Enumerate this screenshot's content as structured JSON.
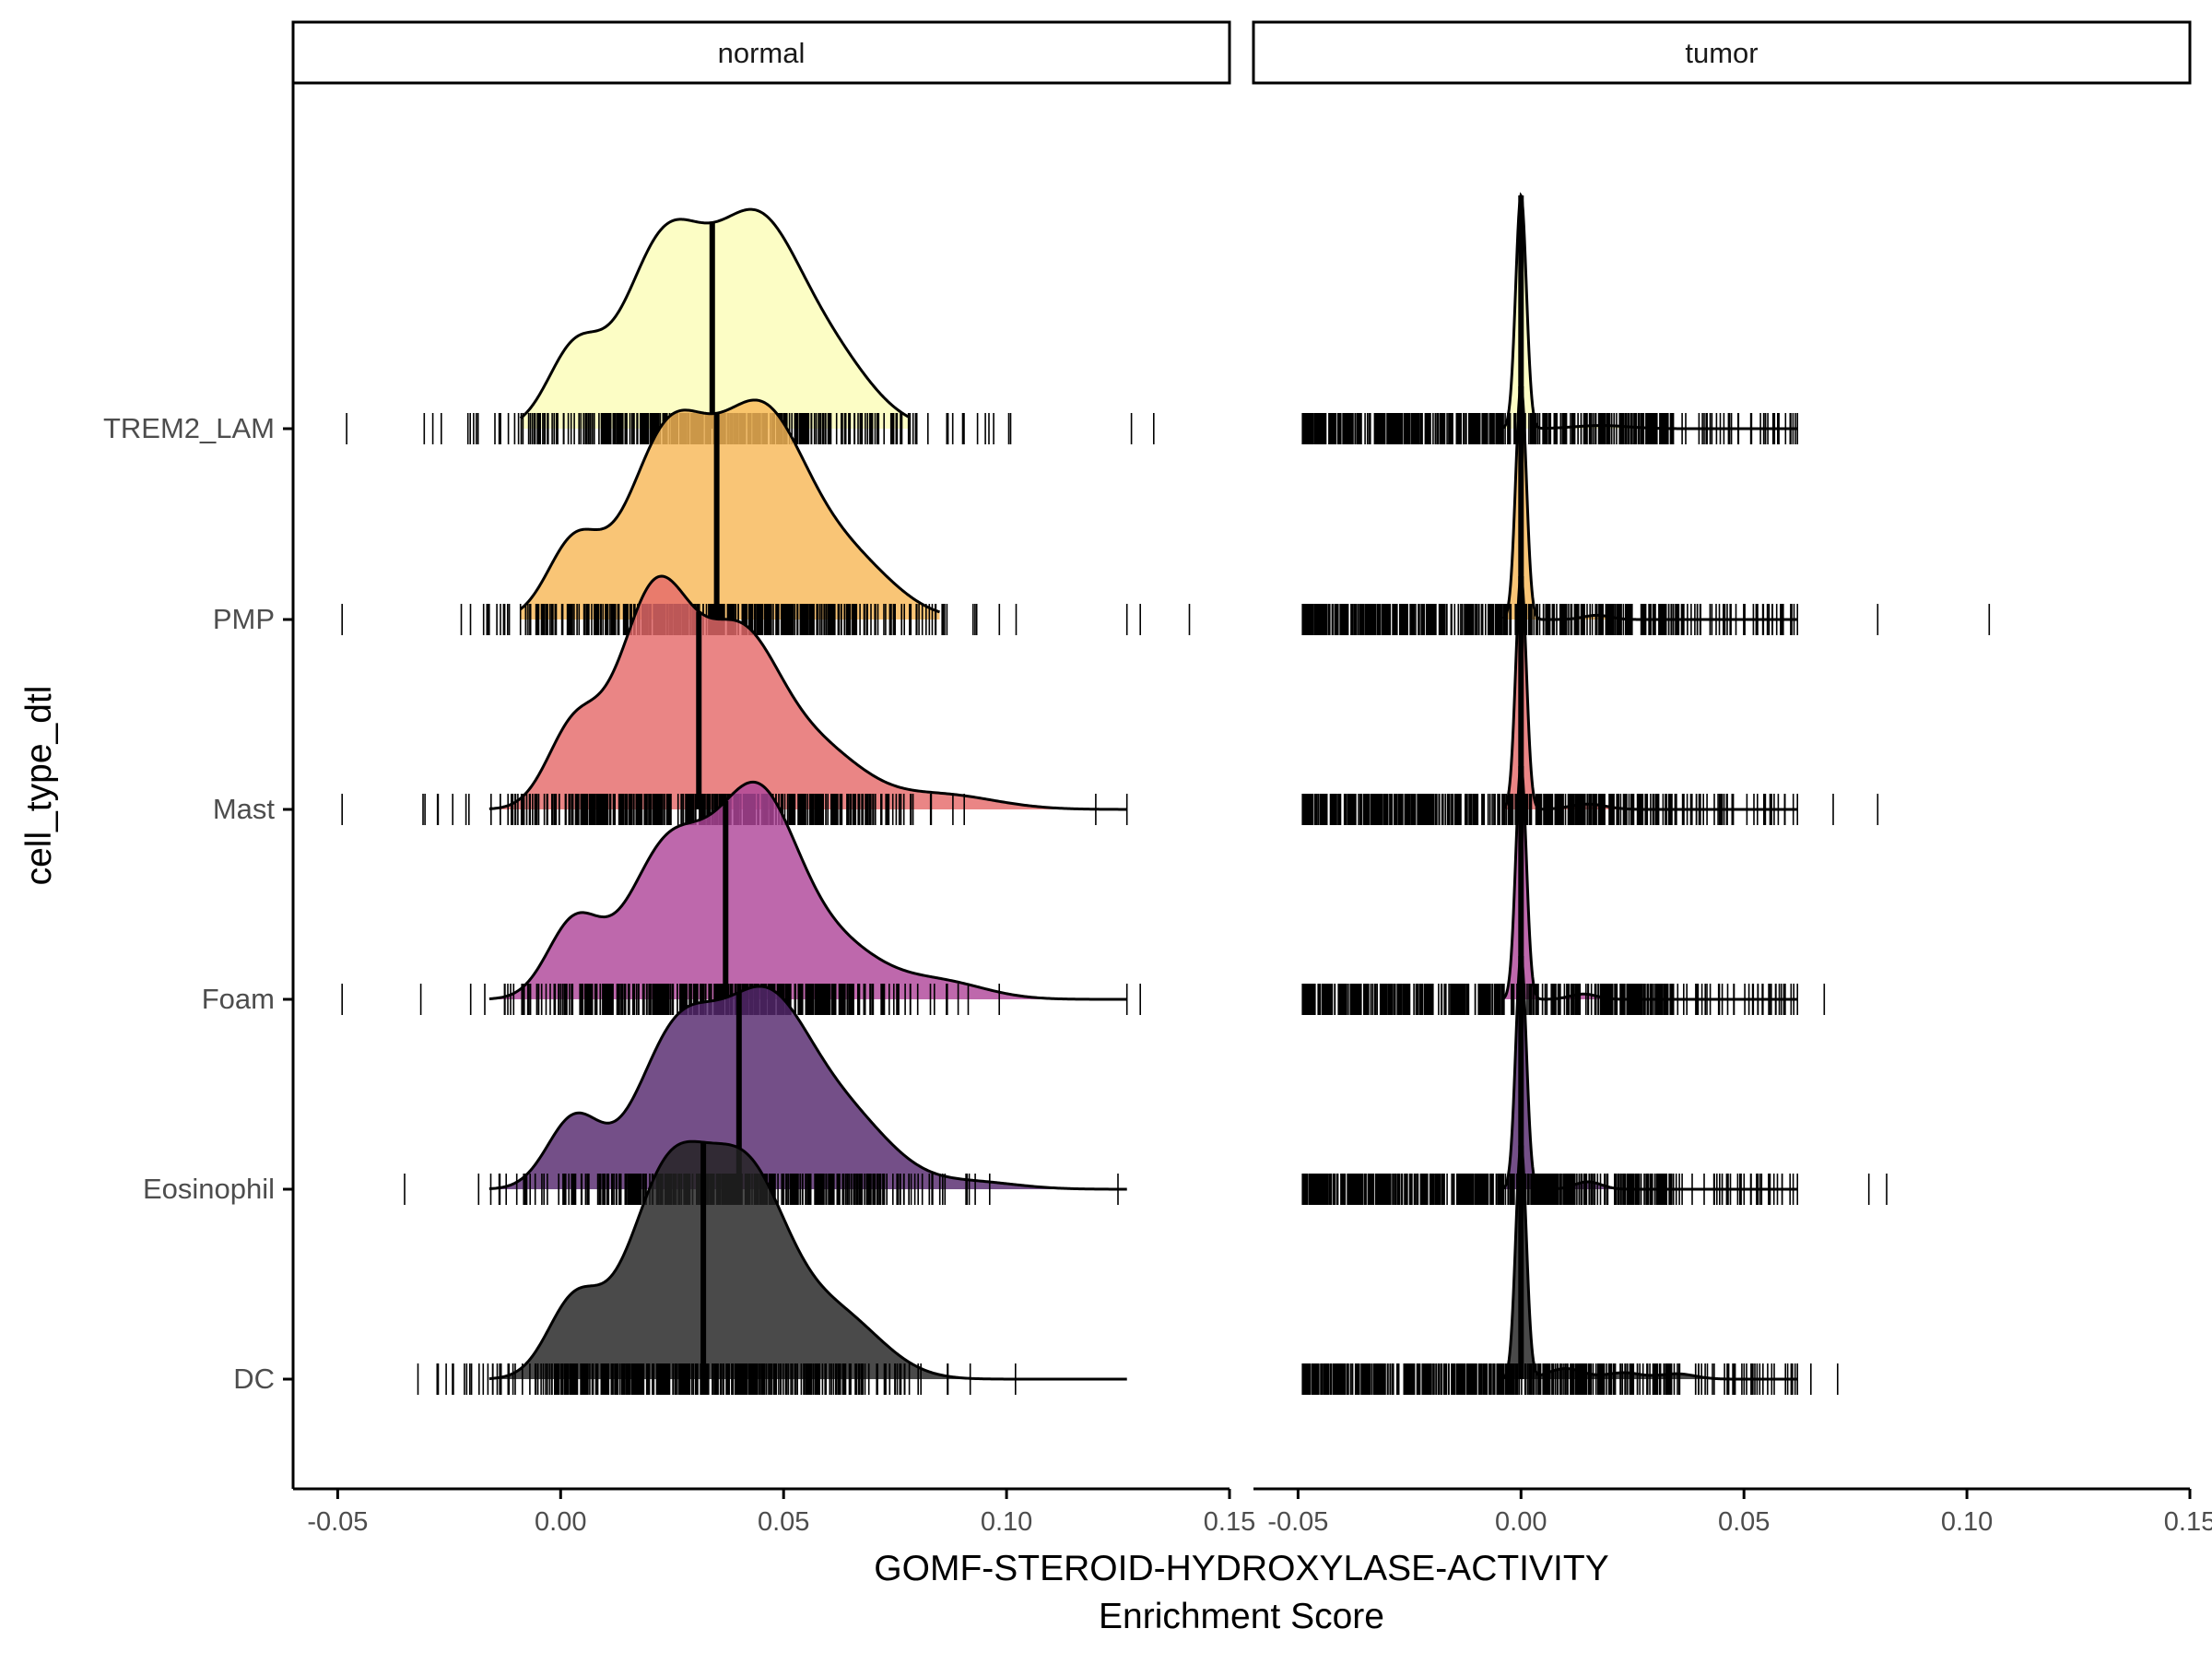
{
  "chart_data": {
    "type": "ridgeline",
    "xlabel_line1": "GOMF-STEROID-HYDROXYLASE-ACTIVITY",
    "xlabel_line2": "Enrichment Score",
    "ylabel": "cell_type_dtl",
    "xlim": [
      -0.06,
      0.15
    ],
    "x_ticks": [
      -0.05,
      0.0,
      0.05,
      0.1,
      0.15
    ],
    "x_tick_labels": [
      "-0.05",
      "0.00",
      "0.05",
      "0.10",
      "0.15"
    ],
    "categories": [
      "TREM2_LAM",
      "PMP",
      "Mast",
      "Foam",
      "Eosinophil",
      "DC"
    ],
    "colors": {
      "TREM2_LAM": "#FCFDBF",
      "PMP": "#F8B858",
      "Mast": "#E56A6A",
      "Foam": "#B0479A",
      "Eosinophil": "#55286E",
      "DC": "#222222"
    },
    "panels": [
      {
        "name": "normal",
        "series": [
          {
            "name": "TREM2_LAM",
            "median": 0.034,
            "range": [
              -0.009,
              0.078
            ],
            "peaks": [
              [
                0.003,
                0.3,
                0.006
              ],
              [
                0.023,
                0.72,
                0.009
              ],
              [
                0.044,
                0.8,
                0.01
              ],
              [
                0.062,
                0.22,
                0.009
              ]
            ],
            "rug_range": [
              -0.048,
              0.128
            ],
            "rug_outliers": [
              0.133
            ]
          },
          {
            "name": "PMP",
            "median": 0.035,
            "range": [
              -0.009,
              0.085
            ],
            "peaks": [
              [
                0.003,
                0.3,
                0.006
              ],
              [
                0.024,
                0.72,
                0.009
              ],
              [
                0.045,
                0.8,
                0.01
              ],
              [
                0.065,
                0.22,
                0.01
              ]
            ],
            "rug_range": [
              -0.049,
              0.127
            ],
            "rug_outliers": [
              0.13,
              0.141
            ]
          },
          {
            "name": "Mast",
            "median": 0.031,
            "range": [
              -0.016,
              0.127
            ],
            "peaks": [
              [
                0.003,
                0.32,
                0.006
              ],
              [
                0.021,
                0.85,
                0.008
              ],
              [
                0.04,
                0.66,
                0.009
              ],
              [
                0.058,
                0.22,
                0.01
              ],
              [
                0.085,
                0.06,
                0.012
              ]
            ],
            "rug_range": [
              -0.049,
              0.127
            ],
            "rug_outliers": [
              0.12
            ]
          },
          {
            "name": "Foam",
            "median": 0.037,
            "range": [
              -0.016,
              0.127
            ],
            "peaks": [
              [
                0.003,
                0.3,
                0.006
              ],
              [
                0.024,
                0.6,
                0.009
              ],
              [
                0.044,
                0.78,
                0.009
              ],
              [
                0.062,
                0.2,
                0.01
              ],
              [
                0.085,
                0.07,
                0.01
              ]
            ],
            "rug_range": [
              -0.049,
              0.127
            ],
            "rug_outliers": [
              0.13
            ]
          },
          {
            "name": "Eosinophil",
            "median": 0.04,
            "range": [
              -0.016,
              0.127
            ],
            "peaks": [
              [
                0.003,
                0.28,
                0.006
              ],
              [
                0.026,
                0.6,
                0.009
              ],
              [
                0.046,
                0.72,
                0.01
              ],
              [
                0.065,
                0.25,
                0.01
              ],
              [
                0.092,
                0.03,
                0.01
              ]
            ],
            "rug_range": [
              -0.035,
              0.125
            ],
            "rug_outliers": []
          },
          {
            "name": "DC",
            "median": 0.032,
            "range": [
              -0.016,
              0.127
            ],
            "peaks": [
              [
                0.003,
                0.3,
                0.006
              ],
              [
                0.024,
                0.8,
                0.009
              ],
              [
                0.042,
                0.76,
                0.009
              ],
              [
                0.062,
                0.25,
                0.01
              ]
            ],
            "rug_range": [
              -0.032,
              0.102
            ],
            "rug_outliers": []
          }
        ]
      },
      {
        "name": "tumor",
        "series": [
          {
            "name": "TREM2_LAM",
            "median": 0.0,
            "range": [
              -0.004,
              0.062
            ],
            "peaks": [
              [
                0.0,
                2.2,
                0.0012
              ],
              [
                0.018,
                0.03,
                0.006
              ]
            ],
            "rug_range": [
              -0.049,
              0.062
            ],
            "rug_outliers": []
          },
          {
            "name": "PMP",
            "median": 0.0,
            "range": [
              -0.004,
              0.062
            ],
            "peaks": [
              [
                0.0,
                2.2,
                0.0012
              ],
              [
                0.017,
                0.04,
                0.003
              ]
            ],
            "rug_range": [
              -0.049,
              0.062
            ],
            "rug_outliers": [
              0.08,
              0.105
            ]
          },
          {
            "name": "Mast",
            "median": 0.0,
            "range": [
              -0.004,
              0.062
            ],
            "peaks": [
              [
                0.0,
                2.2,
                0.0012
              ],
              [
                0.015,
                0.05,
                0.004
              ]
            ],
            "rug_range": [
              -0.049,
              0.062
            ],
            "rug_outliers": [
              0.07,
              0.08
            ]
          },
          {
            "name": "Foam",
            "median": 0.0,
            "range": [
              -0.004,
              0.062
            ],
            "peaks": [
              [
                0.0,
                2.2,
                0.0012
              ],
              [
                0.014,
                0.05,
                0.003
              ]
            ],
            "rug_range": [
              -0.049,
              0.062
            ],
            "rug_outliers": [
              0.068
            ]
          },
          {
            "name": "Eosinophil",
            "median": 0.0,
            "range": [
              -0.004,
              0.062
            ],
            "peaks": [
              [
                0.0,
                2.2,
                0.0012
              ],
              [
                0.015,
                0.07,
                0.003
              ]
            ],
            "rug_range": [
              -0.049,
              0.062
            ],
            "rug_outliers": [
              0.078,
              0.082
            ]
          },
          {
            "name": "DC",
            "median": 0.0,
            "range": [
              -0.004,
              0.062
            ],
            "peaks": [
              [
                0.0,
                2.2,
                0.0012
              ],
              [
                0.01,
                0.1,
                0.004
              ],
              [
                0.023,
                0.06,
                0.004
              ],
              [
                0.035,
                0.05,
                0.004
              ]
            ],
            "rug_range": [
              -0.049,
              0.062
            ],
            "rug_outliers": [
              0.065,
              0.071
            ]
          }
        ]
      }
    ],
    "legend": "none",
    "grid": false
  }
}
